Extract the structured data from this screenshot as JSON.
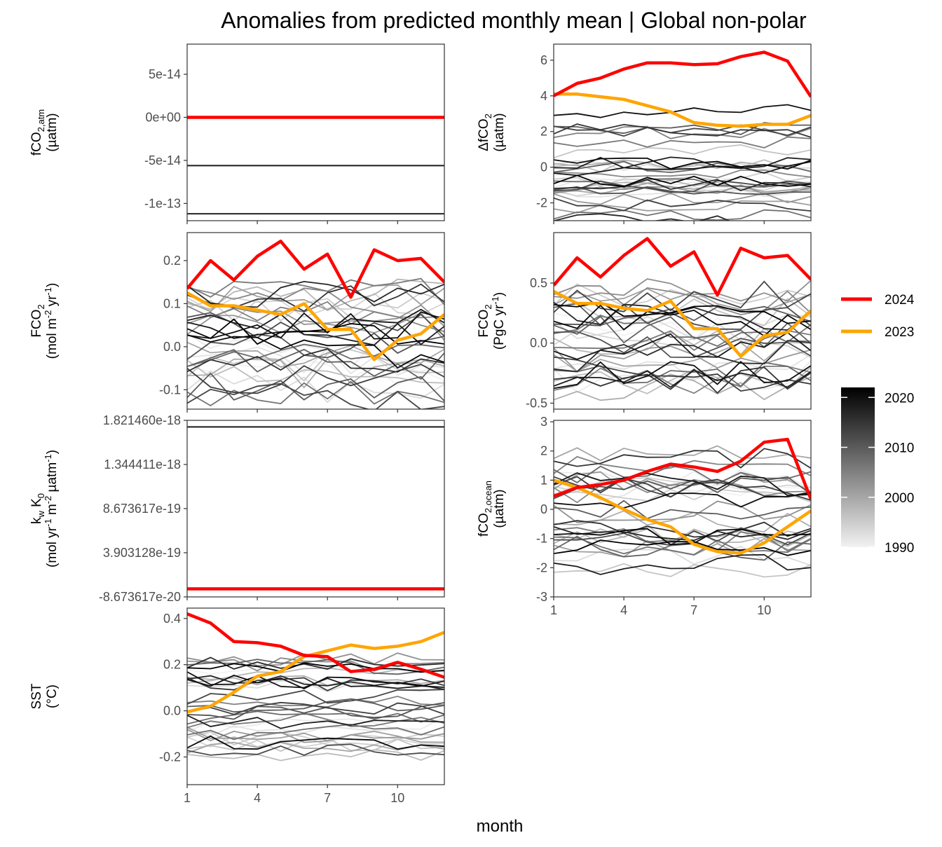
{
  "title": "Anomalies from predicted monthly mean | Global non-polar",
  "xlabel": "month",
  "colors": {
    "y2024": "#ff0000",
    "y2023": "#ffa500",
    "history_dark": "#000000",
    "history_light": "#f2f2f2"
  },
  "legend": {
    "lines": [
      {
        "label": "2024",
        "color": "#ff0000"
      },
      {
        "label": "2023",
        "color": "#ffa500"
      }
    ],
    "colorbar": {
      "ticks": [
        "2020",
        "2010",
        "2000",
        "1990"
      ],
      "range": [
        1990,
        2022
      ]
    }
  },
  "chart_data": [
    {
      "id": "fco2atm",
      "type": "line",
      "title": "",
      "ylabel_lines": [
        "fCO2,atm",
        "(µatm)"
      ],
      "ytick_labels": [
        "5e-14",
        "0e+00",
        "-5e-14",
        "-1e-13"
      ],
      "yticks": [
        5e-14,
        0,
        -5e-14,
        -1e-13
      ],
      "ylim": [
        -1.2e-13,
        8.5e-14
      ],
      "xlim": [
        1,
        12
      ],
      "x_ticks": [
        1,
        4,
        7,
        10
      ],
      "x_ticks_shown": false,
      "gray_pattern": "flat",
      "gray_levels": [
        -5.6e-14,
        -1.12e-13
      ],
      "gray_noise": 0,
      "series": [
        {
          "name": "2024",
          "x": [
            1,
            2,
            3,
            4,
            5,
            6,
            7,
            8,
            9,
            10,
            11,
            12
          ],
          "values": [
            0,
            0,
            0,
            0,
            0,
            0,
            0,
            0,
            0,
            0,
            0,
            0
          ]
        }
      ]
    },
    {
      "id": "dfco2",
      "type": "line",
      "title": "",
      "ylabel_lines": [
        "ΔfCO2",
        "(µatm)"
      ],
      "ytick_labels": [
        "6",
        "4",
        "2",
        "0",
        "-2"
      ],
      "yticks": [
        6,
        4,
        2,
        0,
        -2
      ],
      "ylim": [
        -3.0,
        6.9
      ],
      "xlim": [
        1,
        12
      ],
      "x_ticks": [
        1,
        4,
        7,
        10
      ],
      "x_ticks_shown": false,
      "gray_pattern": "bands",
      "gray_range": [
        -2.9,
        5.2
      ],
      "gray_noise": 0.35,
      "series": [
        {
          "name": "2024",
          "x": [
            1,
            2,
            3,
            4,
            5,
            6,
            7,
            8,
            9,
            10,
            11,
            12
          ],
          "values": [
            4.0,
            4.7,
            5.0,
            5.5,
            5.85,
            5.85,
            5.75,
            5.8,
            6.2,
            6.45,
            5.95,
            3.95
          ]
        },
        {
          "name": "2023",
          "x": [
            1,
            2,
            3,
            4,
            5,
            6,
            7,
            8,
            9,
            10,
            11,
            12
          ],
          "values": [
            4.1,
            4.1,
            3.95,
            3.8,
            3.45,
            3.1,
            2.5,
            2.35,
            2.3,
            2.4,
            2.4,
            2.9
          ]
        }
      ]
    },
    {
      "id": "fco2flux_area",
      "type": "line",
      "title": "",
      "ylabel_lines": [
        "FCO2",
        "(mol m-2 yr-1)"
      ],
      "ytick_labels": [
        "0.2",
        "0.1",
        "0.0",
        "-0.1"
      ],
      "yticks": [
        0.2,
        0.1,
        0.0,
        -0.1
      ],
      "ylim": [
        -0.145,
        0.265
      ],
      "xlim": [
        1,
        12
      ],
      "x_ticks": [
        1,
        4,
        7,
        10
      ],
      "x_ticks_shown": false,
      "gray_pattern": "noise",
      "gray_range": [
        -0.14,
        0.17
      ],
      "gray_noise": 0.035,
      "series": [
        {
          "name": "2024",
          "x": [
            1,
            2,
            3,
            4,
            5,
            6,
            7,
            8,
            9,
            10,
            11,
            12
          ],
          "values": [
            0.135,
            0.2,
            0.155,
            0.21,
            0.245,
            0.18,
            0.215,
            0.115,
            0.225,
            0.2,
            0.205,
            0.15
          ]
        },
        {
          "name": "2023",
          "x": [
            1,
            2,
            3,
            4,
            5,
            6,
            7,
            8,
            9,
            10,
            11,
            12
          ],
          "values": [
            0.125,
            0.095,
            0.095,
            0.085,
            0.075,
            0.1,
            0.04,
            0.04,
            -0.03,
            0.015,
            0.03,
            0.075
          ]
        }
      ]
    },
    {
      "id": "fco2flux_total",
      "type": "line",
      "title": "",
      "ylabel_lines": [
        "FCO2",
        "(PgC yr-1)"
      ],
      "ytick_labels": [
        "0.5",
        "0.0",
        "-0.5"
      ],
      "yticks": [
        0.5,
        0.0,
        -0.5
      ],
      "ylim": [
        -0.55,
        0.92
      ],
      "xlim": [
        1,
        12
      ],
      "x_ticks": [
        1,
        4,
        7,
        10
      ],
      "x_ticks_shown": false,
      "gray_pattern": "noise",
      "gray_range": [
        -0.5,
        0.6
      ],
      "gray_noise": 0.12,
      "series": [
        {
          "name": "2024",
          "x": [
            1,
            2,
            3,
            4,
            5,
            6,
            7,
            8,
            9,
            10,
            11,
            12
          ],
          "values": [
            0.48,
            0.71,
            0.55,
            0.73,
            0.87,
            0.64,
            0.76,
            0.4,
            0.79,
            0.71,
            0.73,
            0.53
          ]
        },
        {
          "name": "2023",
          "x": [
            1,
            2,
            3,
            4,
            5,
            6,
            7,
            8,
            9,
            10,
            11,
            12
          ],
          "values": [
            0.43,
            0.33,
            0.33,
            0.29,
            0.27,
            0.35,
            0.12,
            0.12,
            -0.11,
            0.06,
            0.09,
            0.27
          ]
        }
      ]
    },
    {
      "id": "kwk0",
      "type": "line",
      "title": "",
      "ylabel_lines": [
        "kw K0",
        "(mol yr-1 m-2 µatm-1)"
      ],
      "ytick_labels": [
        "1.821460e-18",
        "1.344411e-18",
        "8.673617e-19",
        "3.903128e-19",
        "-8.673617e-20"
      ],
      "yticks": [
        1.82146e-18,
        1.344411e-18,
        8.673617e-19,
        3.903128e-19,
        -8.673617e-20
      ],
      "ylim": [
        -8.7e-20,
        1.82146e-18
      ],
      "xlim": [
        1,
        12
      ],
      "x_ticks": [
        1,
        4,
        7,
        10
      ],
      "x_ticks_shown": false,
      "gray_pattern": "flat",
      "gray_levels": [
        1.75e-18
      ],
      "gray_noise": 0,
      "series": [
        {
          "name": "2024",
          "x": [
            1,
            2,
            3,
            4,
            5,
            6,
            7,
            8,
            9,
            10,
            11,
            12
          ],
          "values": [
            0,
            0,
            0,
            0,
            0,
            0,
            0,
            0,
            0,
            0,
            0,
            0
          ]
        }
      ]
    },
    {
      "id": "fco2ocean",
      "type": "line",
      "title": "",
      "ylabel_lines": [
        "fCO2,ocean",
        "(µatm)"
      ],
      "ytick_labels": [
        "3",
        "2",
        "1",
        "0",
        "-1",
        "-2",
        "-3"
      ],
      "yticks": [
        3,
        2,
        1,
        0,
        -1,
        -2,
        -3
      ],
      "ylim": [
        -3.0,
        3.05
      ],
      "xlim": [
        1,
        12
      ],
      "x_ticks": [
        1,
        4,
        7,
        10
      ],
      "x_ticks_shown": true,
      "gray_pattern": "noise",
      "gray_range": [
        -2.6,
        2.6
      ],
      "gray_noise": 0.35,
      "series": [
        {
          "name": "2024",
          "x": [
            1,
            2,
            3,
            4,
            5,
            6,
            7,
            8,
            9,
            10,
            11,
            12
          ],
          "values": [
            0.45,
            0.75,
            0.85,
            1.0,
            1.3,
            1.55,
            1.45,
            1.3,
            1.65,
            2.3,
            2.4,
            0.35
          ]
        },
        {
          "name": "2023",
          "x": [
            1,
            2,
            3,
            4,
            5,
            6,
            7,
            8,
            9,
            10,
            11,
            12
          ],
          "values": [
            1.0,
            0.75,
            0.4,
            0.0,
            -0.35,
            -0.6,
            -1.2,
            -1.45,
            -1.5,
            -1.15,
            -0.6,
            -0.05
          ]
        }
      ]
    },
    {
      "id": "sst",
      "type": "line",
      "title": "",
      "ylabel_lines": [
        "SST",
        "(°C)"
      ],
      "ytick_labels": [
        "0.4",
        "0.2",
        "0.0",
        "-0.2"
      ],
      "yticks": [
        0.4,
        0.2,
        0.0,
        -0.2
      ],
      "ylim": [
        -0.32,
        0.445
      ],
      "xlim": [
        1,
        12
      ],
      "x_ticks": [
        1,
        4,
        7,
        10
      ],
      "x_ticks_shown": true,
      "gray_pattern": "noise",
      "gray_range": [
        -0.28,
        0.3
      ],
      "gray_noise": 0.03,
      "series": [
        {
          "name": "2024",
          "x": [
            1,
            2,
            3,
            4,
            5,
            6,
            7,
            8,
            9,
            10,
            11,
            12
          ],
          "values": [
            0.42,
            0.38,
            0.3,
            0.295,
            0.28,
            0.24,
            0.235,
            0.17,
            0.18,
            0.21,
            0.18,
            0.145
          ]
        },
        {
          "name": "2023",
          "x": [
            1,
            2,
            3,
            4,
            5,
            6,
            7,
            8,
            9,
            10,
            11,
            12
          ],
          "values": [
            -0.005,
            0.02,
            0.08,
            0.15,
            0.17,
            0.235,
            0.26,
            0.285,
            0.27,
            0.28,
            0.3,
            0.34
          ]
        }
      ]
    }
  ]
}
